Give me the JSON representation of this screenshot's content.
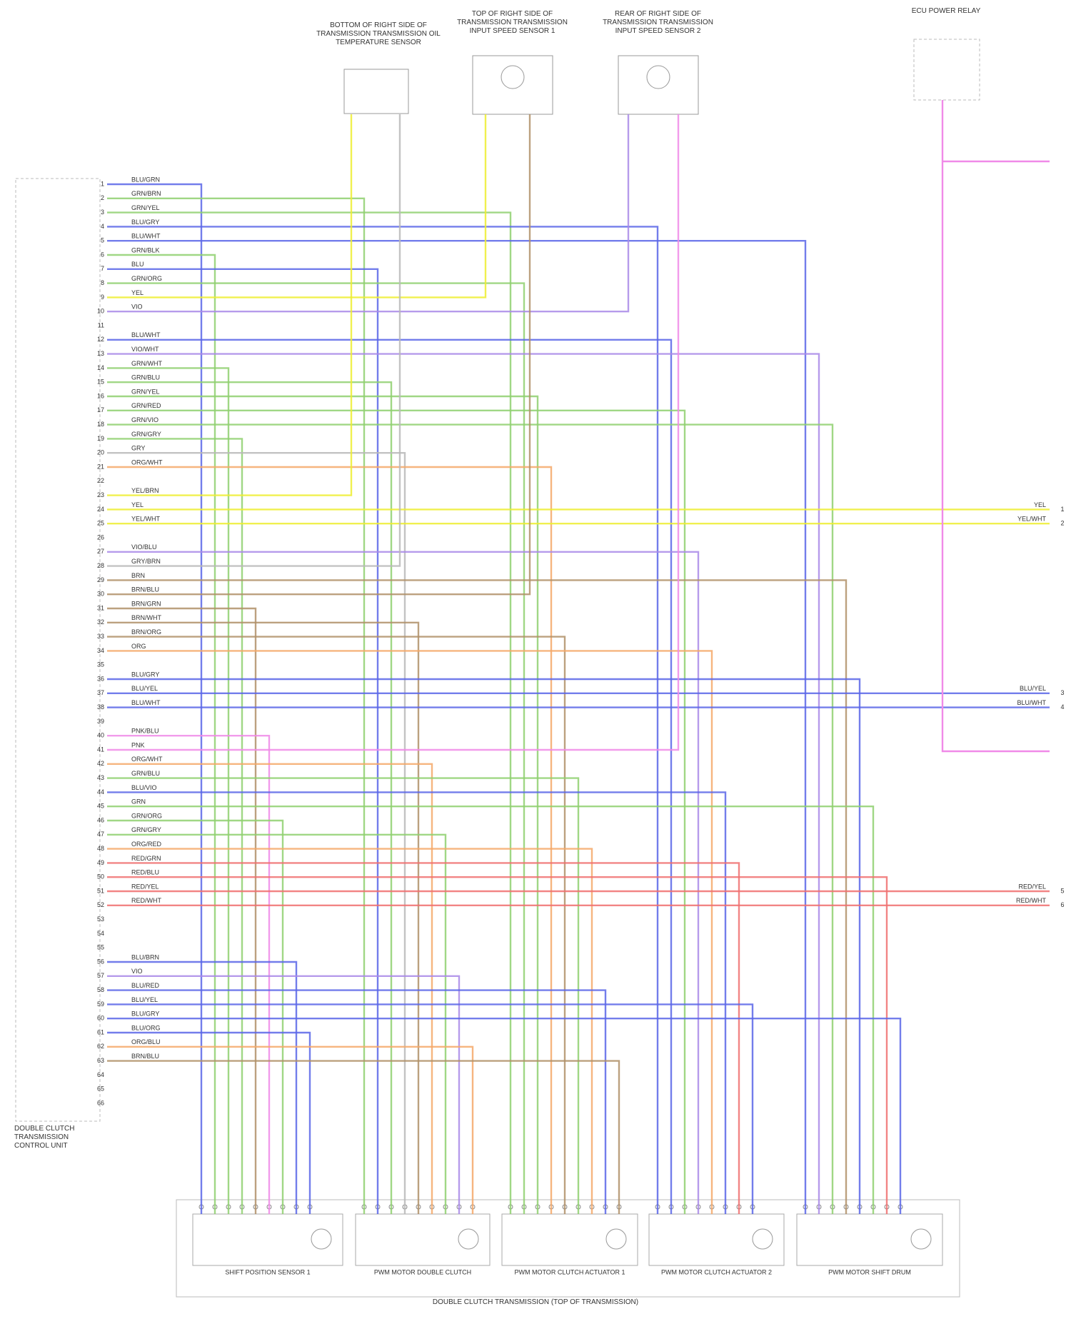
{
  "top_components": [
    {
      "label": "BOTTOM OF RIGHT SIDE OF TRANSMISSION TRANSMISSION OIL TEMPERATURE SENSOR"
    },
    {
      "label": "TOP OF RIGHT SIDE OF TRANSMISSION TRANSMISSION INPUT SPEED SENSOR 1"
    },
    {
      "label": "REAR OF RIGHT SIDE OF TRANSMISSION TRANSMISSION INPUT SPEED SENSOR 2"
    },
    {
      "label": "ECU POWER RELAY"
    }
  ],
  "control_unit": {
    "label": "DOUBLE CLUTCH TRANSMISSION CONTROL UNIT",
    "pins": [
      {
        "number": 1,
        "wire": "BLU/GRN"
      },
      {
        "number": 2,
        "wire": "GRN/BRN"
      },
      {
        "number": 3,
        "wire": "GRN/YEL"
      },
      {
        "number": 4,
        "wire": "BLU/GRY"
      },
      {
        "number": 5,
        "wire": "BLU/WHT"
      },
      {
        "number": 6,
        "wire": "GRN/BLK"
      },
      {
        "number": 7,
        "wire": "BLU"
      },
      {
        "number": 8,
        "wire": "GRN/ORG"
      },
      {
        "number": 9,
        "wire": "YEL"
      },
      {
        "number": 10,
        "wire": "VIO"
      },
      {
        "number": 11
      },
      {
        "number": 12,
        "wire": "BLU/WHT"
      },
      {
        "number": 13,
        "wire": "VIO/WHT"
      },
      {
        "number": 14,
        "wire": "GRN/WHT"
      },
      {
        "number": 15,
        "wire": "GRN/BLU"
      },
      {
        "number": 16,
        "wire": "GRN/YEL"
      },
      {
        "number": 17,
        "wire": "GRN/RED"
      },
      {
        "number": 18,
        "wire": "GRN/VIO"
      },
      {
        "number": 19,
        "wire": "GRN/GRY"
      },
      {
        "number": 20,
        "wire": "GRY"
      },
      {
        "number": 21,
        "wire": "ORG/WHT"
      },
      {
        "number": 22
      },
      {
        "number": 23,
        "wire": "YEL/BRN"
      },
      {
        "number": 24,
        "wire": "YEL"
      },
      {
        "number": 25,
        "wire": "YEL/WHT"
      },
      {
        "number": 26
      },
      {
        "number": 27,
        "wire": "VIO/BLU"
      },
      {
        "number": 28,
        "wire": "GRY/BRN"
      },
      {
        "number": 29,
        "wire": "BRN"
      },
      {
        "number": 30,
        "wire": "BRN/BLU"
      },
      {
        "number": 31,
        "wire": "BRN/GRN"
      },
      {
        "number": 32,
        "wire": "BRN/WHT"
      },
      {
        "number": 33,
        "wire": "BRN/ORG"
      },
      {
        "number": 34,
        "wire": "ORG"
      },
      {
        "number": 35
      },
      {
        "number": 36,
        "wire": "BLU/GRY"
      },
      {
        "number": 37,
        "wire": "BLU/YEL"
      },
      {
        "number": 38,
        "wire": "BLU/WHT"
      },
      {
        "number": 39
      },
      {
        "number": 40,
        "wire": "PNK/BLU"
      },
      {
        "number": 41,
        "wire": "PNK"
      },
      {
        "number": 42,
        "wire": "ORG/WHT"
      },
      {
        "number": 43,
        "wire": "GRN/BLU"
      },
      {
        "number": 44,
        "wire": "BLU/VIO"
      },
      {
        "number": 45,
        "wire": "GRN"
      },
      {
        "number": 46,
        "wire": "GRN/ORG"
      },
      {
        "number": 47,
        "wire": "GRN/GRY"
      },
      {
        "number": 48,
        "wire": "ORG/RED"
      },
      {
        "number": 49,
        "wire": "RED/GRN"
      },
      {
        "number": 50,
        "wire": "RED/BLU"
      },
      {
        "number": 51,
        "wire": "RED/YEL"
      },
      {
        "number": 52,
        "wire": "RED/WHT"
      },
      {
        "number": 53
      },
      {
        "number": 54
      },
      {
        "number": 55
      },
      {
        "number": 56,
        "wire": "BLU/BRN"
      },
      {
        "number": 57,
        "wire": "VIO"
      },
      {
        "number": 58,
        "wire": "BLU/RED"
      },
      {
        "number": 59,
        "wire": "BLU/YEL"
      },
      {
        "number": 60,
        "wire": "BLU/GRY"
      },
      {
        "number": 61,
        "wire": "BLU/ORG"
      },
      {
        "number": 62,
        "wire": "ORG/BLU"
      },
      {
        "number": 63,
        "wire": "BRN/BLU"
      },
      {
        "number": 64
      },
      {
        "number": 65
      },
      {
        "number": 66
      }
    ]
  },
  "right_connections": [
    {
      "wire": "YEL",
      "pin": 1
    },
    {
      "wire": "YEL/WHT",
      "pin": 2
    },
    {
      "wire": "BLU/YEL",
      "pin": 3
    },
    {
      "wire": "BLU/WHT",
      "pin": 4
    },
    {
      "wire": "RED/YEL",
      "pin": 5
    },
    {
      "wire": "RED/WHT",
      "pin": 6
    }
  ],
  "modules": [
    {
      "label": "SHIFT POSITION SENSOR 1"
    },
    {
      "label": "PWM MOTOR DOUBLE CLUTCH"
    },
    {
      "label": "PWM MOTOR CLUTCH ACTUATOR 1"
    },
    {
      "label": "PWM MOTOR CLUTCH ACTUATOR 2"
    },
    {
      "label": "PWM MOTOR SHIFT DRUM"
    }
  ],
  "assembly_label": "DOUBLE CLUTCH TRANSMISSION (TOP OF TRANSMISSION)"
}
